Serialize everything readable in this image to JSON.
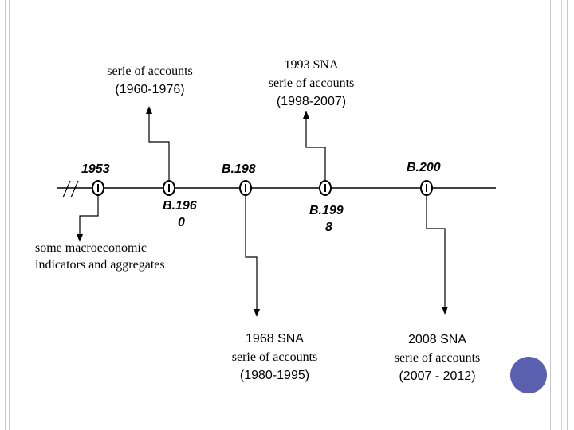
{
  "top_left_box": {
    "line1": "serie of accounts",
    "line2": "(1960-1976)"
  },
  "top_right_box": {
    "line1": "1993 SNA",
    "line2": "serie of accounts",
    "line3": "(1998-2007)"
  },
  "bottom_left_box": {
    "line1": "some macroeconomic",
    "line2": "indicators and aggregates"
  },
  "bottom_mid_box": {
    "line1": "1968 SNA",
    "line2": "serie of accounts",
    "line3": "(1980-1995)"
  },
  "bottom_right_box": {
    "line1": "2008 SNA",
    "line2": "serie of accounts",
    "line3": "(2007 - 2012)"
  },
  "timeline": {
    "y1953": "1953",
    "y1960_a": "B.196",
    "y1960_b": "0",
    "y1980": "B.198",
    "y1998_a": "B.199",
    "y1998_b": "8",
    "y2008": "B.200"
  },
  "colors": {
    "line": "#000000",
    "accent": "#5a5fb0",
    "frame": "#c8c8d2"
  }
}
